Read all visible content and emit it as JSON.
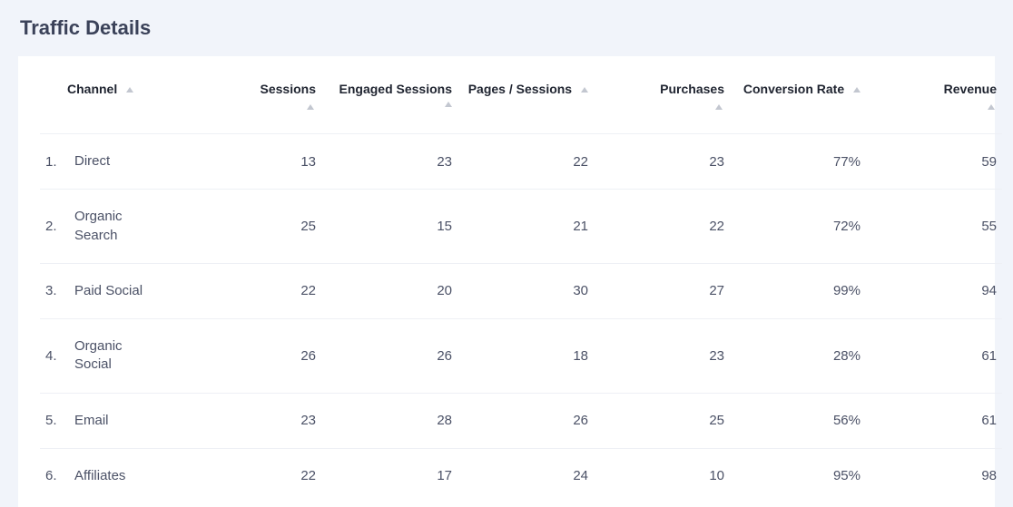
{
  "section_title": "Traffic Details",
  "table": {
    "columns": [
      {
        "key": "channel",
        "label": "Channel",
        "align": "left",
        "sort_inline": true
      },
      {
        "key": "sessions",
        "label": "Sessions",
        "align": "right",
        "sort_inline": false
      },
      {
        "key": "engaged_sessions",
        "label": "Engaged Sessions",
        "align": "right",
        "sort_inline": true
      },
      {
        "key": "pages_sessions",
        "label": "Pages / Sessions",
        "align": "right",
        "sort_inline": true
      },
      {
        "key": "purchases",
        "label": "Purchases",
        "align": "right",
        "sort_inline": false
      },
      {
        "key": "conversion_rate",
        "label": "Conversion Rate",
        "align": "right",
        "sort_inline": true
      },
      {
        "key": "revenue",
        "label": "Revenue",
        "align": "right",
        "sort_inline": false
      }
    ],
    "rows": [
      {
        "num": "1.",
        "channel": "Direct",
        "sessions": "13",
        "engaged_sessions": "23",
        "pages_sessions": "22",
        "purchases": "23",
        "conversion_rate": "77%",
        "revenue": "59"
      },
      {
        "num": "2.",
        "channel": "Organic Search",
        "sessions": "25",
        "engaged_sessions": "15",
        "pages_sessions": "21",
        "purchases": "22",
        "conversion_rate": "72%",
        "revenue": "55"
      },
      {
        "num": "3.",
        "channel": "Paid Social",
        "sessions": "22",
        "engaged_sessions": "20",
        "pages_sessions": "30",
        "purchases": "27",
        "conversion_rate": "99%",
        "revenue": "94"
      },
      {
        "num": "4.",
        "channel": "Organic Social",
        "sessions": "26",
        "engaged_sessions": "26",
        "pages_sessions": "18",
        "purchases": "23",
        "conversion_rate": "28%",
        "revenue": "61"
      },
      {
        "num": "5.",
        "channel": "Email",
        "sessions": "23",
        "engaged_sessions": "28",
        "pages_sessions": "26",
        "purchases": "25",
        "conversion_rate": "56%",
        "revenue": "61"
      },
      {
        "num": "6.",
        "channel": "Affiliates",
        "sessions": "22",
        "engaged_sessions": "17",
        "pages_sessions": "24",
        "purchases": "10",
        "conversion_rate": "95%",
        "revenue": "98"
      }
    ]
  },
  "style": {
    "page_background": "#f1f4fa",
    "card_background": "#ffffff",
    "title_color": "#3b4259",
    "header_text_color": "#1f2430",
    "body_text_color": "#4b5166",
    "row_border_color": "#eef0f5",
    "sort_icon_color": "#c3c7d0",
    "title_fontsize": 22,
    "header_fontsize": 14,
    "body_fontsize": 15
  }
}
